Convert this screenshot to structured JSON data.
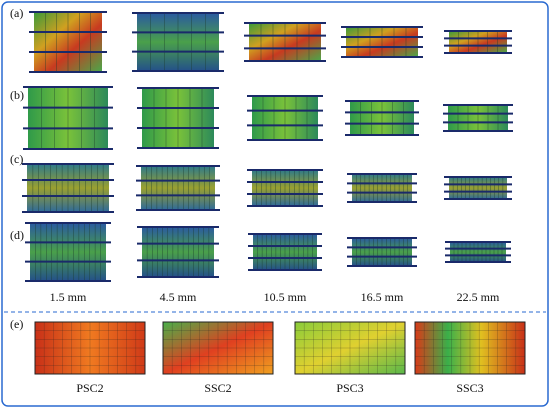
{
  "panels": {
    "rows": [
      "(a)",
      "(b)",
      "(c)",
      "(d)"
    ],
    "columns": [
      "1.5 mm",
      "4.5 mm",
      "10.5 mm",
      "16.5 mm",
      "22.5 mm"
    ]
  },
  "comparison": {
    "label": "(e)",
    "items": [
      "PSC2",
      "SSC2",
      "PSC3",
      "SSC3"
    ]
  }
}
